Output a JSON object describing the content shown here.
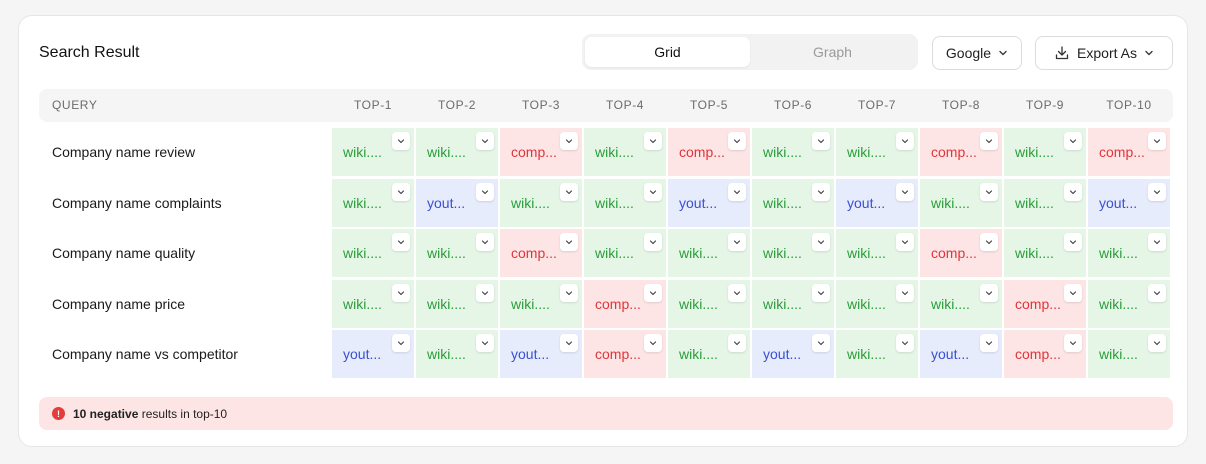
{
  "header": {
    "title": "Search Result",
    "view_toggle": [
      {
        "label": "Grid",
        "active": true
      },
      {
        "label": "Graph",
        "active": false
      }
    ],
    "engine_select": {
      "value": "Google",
      "icon": "chevron-down-icon"
    },
    "export_button": {
      "label": "Export As",
      "icon": "download-icon"
    }
  },
  "table": {
    "columns": [
      "QUERY",
      "TOP-1",
      "TOP-2",
      "TOP-3",
      "TOP-4",
      "TOP-5",
      "TOP-6",
      "TOP-7",
      "TOP-8",
      "TOP-9",
      "TOP-10"
    ],
    "rows": [
      {
        "query": "Company name review",
        "cells": [
          {
            "text": "wiki....",
            "tone": "green"
          },
          {
            "text": "wiki....",
            "tone": "green"
          },
          {
            "text": "comp...",
            "tone": "red"
          },
          {
            "text": "wiki....",
            "tone": "green"
          },
          {
            "text": "comp...",
            "tone": "red"
          },
          {
            "text": "wiki....",
            "tone": "green"
          },
          {
            "text": "wiki....",
            "tone": "green"
          },
          {
            "text": "comp...",
            "tone": "red"
          },
          {
            "text": "wiki....",
            "tone": "green"
          },
          {
            "text": "comp...",
            "tone": "red"
          }
        ]
      },
      {
        "query": "Company name complaints",
        "cells": [
          {
            "text": "wiki....",
            "tone": "green"
          },
          {
            "text": "yout...",
            "tone": "blue"
          },
          {
            "text": "wiki....",
            "tone": "green"
          },
          {
            "text": "wiki....",
            "tone": "green"
          },
          {
            "text": "yout...",
            "tone": "blue"
          },
          {
            "text": "wiki....",
            "tone": "green"
          },
          {
            "text": "yout...",
            "tone": "blue"
          },
          {
            "text": "wiki....",
            "tone": "green"
          },
          {
            "text": "wiki....",
            "tone": "green"
          },
          {
            "text": "yout...",
            "tone": "blue"
          }
        ]
      },
      {
        "query": "Company name quality",
        "cells": [
          {
            "text": "wiki....",
            "tone": "green"
          },
          {
            "text": "wiki....",
            "tone": "green"
          },
          {
            "text": "comp...",
            "tone": "red"
          },
          {
            "text": "wiki....",
            "tone": "green"
          },
          {
            "text": "wiki....",
            "tone": "green"
          },
          {
            "text": "wiki....",
            "tone": "green"
          },
          {
            "text": "wiki....",
            "tone": "green"
          },
          {
            "text": "comp...",
            "tone": "red"
          },
          {
            "text": "wiki....",
            "tone": "green"
          },
          {
            "text": "wiki....",
            "tone": "green"
          }
        ]
      },
      {
        "query": "Company name price",
        "cells": [
          {
            "text": "wiki....",
            "tone": "green"
          },
          {
            "text": "wiki....",
            "tone": "green"
          },
          {
            "text": "wiki....",
            "tone": "green"
          },
          {
            "text": "comp...",
            "tone": "red"
          },
          {
            "text": "wiki....",
            "tone": "green"
          },
          {
            "text": "wiki....",
            "tone": "green"
          },
          {
            "text": "wiki....",
            "tone": "green"
          },
          {
            "text": "wiki....",
            "tone": "green"
          },
          {
            "text": "comp...",
            "tone": "red"
          },
          {
            "text": "wiki....",
            "tone": "green"
          }
        ]
      },
      {
        "query": "Company name vs competitor",
        "cells": [
          {
            "text": "yout...",
            "tone": "blue"
          },
          {
            "text": "wiki....",
            "tone": "green"
          },
          {
            "text": "yout...",
            "tone": "blue"
          },
          {
            "text": "comp...",
            "tone": "red"
          },
          {
            "text": "wiki....",
            "tone": "green"
          },
          {
            "text": "yout...",
            "tone": "blue"
          },
          {
            "text": "wiki....",
            "tone": "green"
          },
          {
            "text": "yout...",
            "tone": "blue"
          },
          {
            "text": "comp...",
            "tone": "red"
          },
          {
            "text": "wiki....",
            "tone": "green"
          }
        ]
      }
    ]
  },
  "footer": {
    "icon": "alert-icon",
    "count_text": "10 negative",
    "rest_text": "results in top-10"
  },
  "colors": {
    "positive": "#2a9d3a",
    "negative": "#e0343b",
    "neutral": "#3a4fd6"
  }
}
